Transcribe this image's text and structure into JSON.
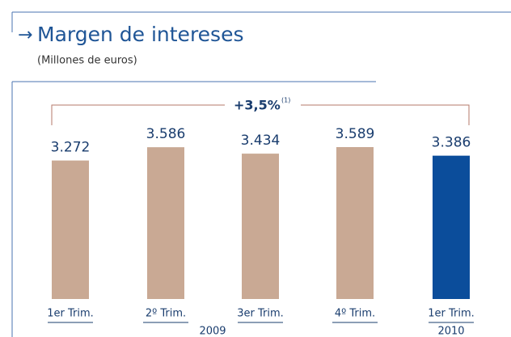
{
  "chart_data": {
    "type": "bar",
    "title": "Margen de intereses",
    "subtitle": "(Millones de euros)",
    "annotation": "+3,5%",
    "annotation_note": "(1)",
    "categories": [
      "1er Trim.",
      "2º Trim.",
      "3er Trim.",
      "4º Trim.",
      "1er Trim."
    ],
    "groups": [
      "2009",
      "2010"
    ],
    "values": [
      3272,
      3586,
      3434,
      3589,
      3386
    ],
    "value_labels": [
      "3.272",
      "3.586",
      "3.434",
      "3.589",
      "3.386"
    ],
    "colors": [
      "#c9a994",
      "#c9a994",
      "#c9a994",
      "#c9a994",
      "#0b4d9b"
    ]
  }
}
